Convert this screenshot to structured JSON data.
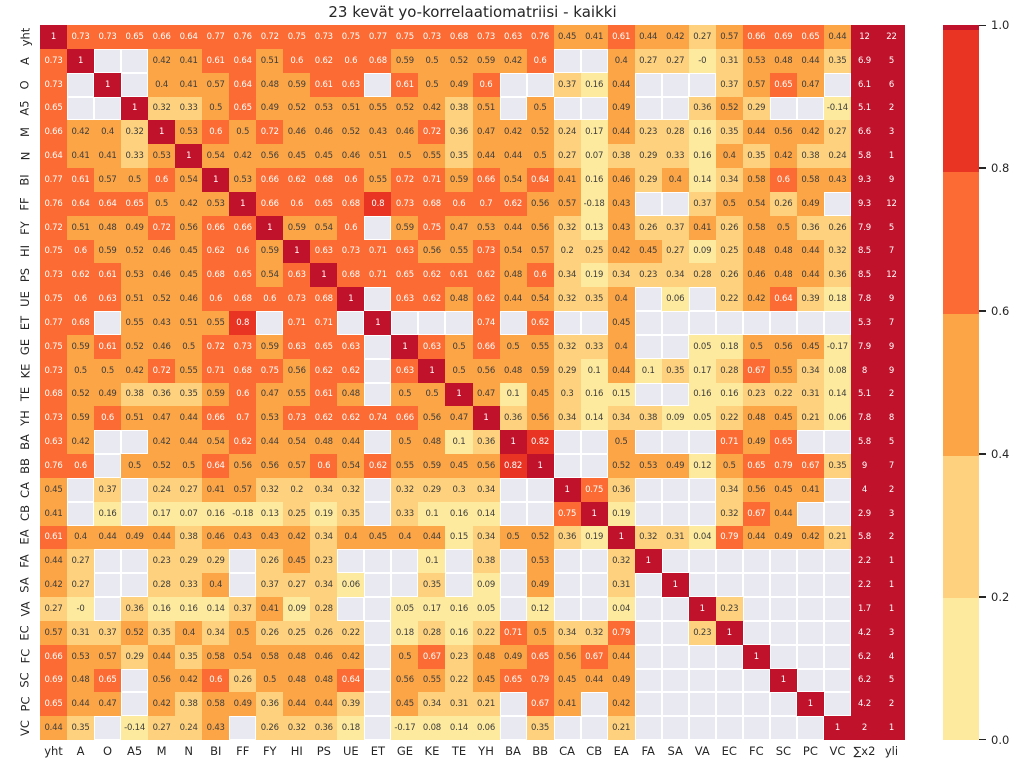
{
  "title": "23 kevät yo-korrelaatiomatriisi - kaikki",
  "colors": {
    "band_max": "#c0132b",
    "band_80_100": "#e93423",
    "band_60_80": "#fb6b33",
    "band_40_60": "#fba546",
    "band_20_40": "#fdd17d",
    "band_0_20": "#fdea9e",
    "missing": "#e9e9f1",
    "text_dark": "#3d3d3d",
    "text_light": "#ffffff",
    "axis_text": "#262626"
  },
  "chart_data": {
    "type": "heatmap",
    "title": "23 kevät yo-korrelaatiomatriisi - kaikki",
    "colormap_bands": [
      {
        "range": ">=1.0",
        "color": "#c0132b"
      },
      {
        "range": "0.8-1.0",
        "color": "#e93423"
      },
      {
        "range": "0.6-0.8",
        "color": "#fb6b33"
      },
      {
        "range": "0.4-0.6",
        "color": "#fba546"
      },
      {
        "range": "0.2-0.4",
        "color": "#fdd17d"
      },
      {
        "range": "0.0-0.2",
        "color": "#fdea9e"
      }
    ],
    "colorbar": {
      "ticks": [
        "1.0",
        "0.8",
        "0.6",
        "0.4",
        "0.2",
        "0.0"
      ],
      "range": [
        0,
        1
      ],
      "position": "right"
    },
    "columns": [
      "yht",
      "A",
      "O",
      "A5",
      "M",
      "N",
      "BI",
      "FF",
      "FY",
      "HI",
      "PS",
      "UE",
      "ET",
      "GE",
      "KE",
      "TE",
      "YH",
      "BA",
      "BB",
      "CA",
      "CB",
      "EA",
      "FA",
      "SA",
      "VA",
      "EC",
      "FC",
      "SC",
      "PC",
      "VC",
      "∑x2",
      "yli"
    ],
    "rows": [
      "yht",
      "A",
      "O",
      "A5",
      "M",
      "N",
      "BI",
      "FF",
      "FY",
      "HI",
      "PS",
      "UE",
      "ET",
      "GE",
      "KE",
      "TE",
      "YH",
      "BA",
      "BB",
      "CA",
      "CB",
      "EA",
      "FA",
      "SA",
      "VA",
      "EC",
      "FC",
      "SC",
      "PC",
      "VC"
    ],
    "matrix": [
      [
        "1",
        "0.73",
        "0.73",
        "0.65",
        "0.66",
        "0.64",
        "0.77",
        "0.76",
        "0.72",
        "0.75",
        "0.73",
        "0.75",
        "0.77",
        "0.75",
        "0.73",
        "0.68",
        "0.73",
        "0.63",
        "0.76",
        "0.45",
        "0.41",
        "0.61",
        "0.44",
        "0.42",
        "0.27",
        "0.57",
        "0.66",
        "0.69",
        "0.65",
        "0.44",
        "12",
        "22"
      ],
      [
        "0.73",
        "1",
        null,
        null,
        "0.42",
        "0.41",
        "0.61",
        "0.64",
        "0.51",
        "0.6",
        "0.62",
        "0.6",
        "0.68",
        "0.59",
        "0.5",
        "0.52",
        "0.59",
        "0.42",
        "0.6",
        null,
        null,
        "0.4",
        "0.27",
        "0.27",
        "-0",
        "0.31",
        "0.53",
        "0.48",
        "0.44",
        "0.35",
        "6.9",
        "5"
      ],
      [
        "0.73",
        null,
        "1",
        null,
        "0.4",
        "0.41",
        "0.57",
        "0.64",
        "0.48",
        "0.59",
        "0.61",
        "0.63",
        null,
        "0.61",
        "0.5",
        "0.49",
        "0.6",
        null,
        null,
        "0.37",
        "0.16",
        "0.44",
        null,
        null,
        null,
        "0.37",
        "0.57",
        "0.65",
        "0.47",
        null,
        "6.1",
        "6"
      ],
      [
        "0.65",
        null,
        null,
        "1",
        "0.32",
        "0.33",
        "0.5",
        "0.65",
        "0.49",
        "0.52",
        "0.53",
        "0.51",
        "0.55",
        "0.52",
        "0.42",
        "0.38",
        "0.51",
        null,
        "0.5",
        null,
        null,
        "0.49",
        null,
        null,
        "0.36",
        "0.52",
        "0.29",
        null,
        null,
        "-0.14",
        "5.1",
        "2"
      ],
      [
        "0.66",
        "0.42",
        "0.4",
        "0.32",
        "1",
        "0.53",
        "0.6",
        "0.5",
        "0.72",
        "0.46",
        "0.46",
        "0.52",
        "0.43",
        "0.46",
        "0.72",
        "0.36",
        "0.47",
        "0.42",
        "0.52",
        "0.24",
        "0.17",
        "0.44",
        "0.23",
        "0.28",
        "0.16",
        "0.35",
        "0.44",
        "0.56",
        "0.42",
        "0.27",
        "6.6",
        "3"
      ],
      [
        "0.64",
        "0.41",
        "0.41",
        "0.33",
        "0.53",
        "1",
        "0.54",
        "0.42",
        "0.56",
        "0.45",
        "0.45",
        "0.46",
        "0.51",
        "0.5",
        "0.55",
        "0.35",
        "0.44",
        "0.44",
        "0.5",
        "0.27",
        "0.07",
        "0.38",
        "0.29",
        "0.33",
        "0.16",
        "0.4",
        "0.35",
        "0.42",
        "0.38",
        "0.24",
        "5.8",
        "1"
      ],
      [
        "0.77",
        "0.61",
        "0.57",
        "0.5",
        "0.6",
        "0.54",
        "1",
        "0.53",
        "0.66",
        "0.62",
        "0.68",
        "0.6",
        "0.55",
        "0.72",
        "0.71",
        "0.59",
        "0.66",
        "0.54",
        "0.64",
        "0.41",
        "0.16",
        "0.46",
        "0.29",
        "0.4",
        "0.14",
        "0.34",
        "0.58",
        "0.6",
        "0.58",
        "0.43",
        "9.3",
        "9"
      ],
      [
        "0.76",
        "0.64",
        "0.64",
        "0.65",
        "0.5",
        "0.42",
        "0.53",
        "1",
        "0.66",
        "0.6",
        "0.65",
        "0.68",
        "0.8",
        "0.73",
        "0.68",
        "0.6",
        "0.7",
        "0.62",
        "0.56",
        "0.57",
        "-0.18",
        "0.43",
        null,
        null,
        "0.37",
        "0.5",
        "0.54",
        "0.26",
        "0.49",
        null,
        "9.3",
        "12"
      ],
      [
        "0.72",
        "0.51",
        "0.48",
        "0.49",
        "0.72",
        "0.56",
        "0.66",
        "0.66",
        "1",
        "0.59",
        "0.54",
        "0.6",
        null,
        "0.59",
        "0.75",
        "0.47",
        "0.53",
        "0.44",
        "0.56",
        "0.32",
        "0.13",
        "0.43",
        "0.26",
        "0.37",
        "0.41",
        "0.26",
        "0.58",
        "0.5",
        "0.36",
        "0.26",
        "7.9",
        "5"
      ],
      [
        "0.75",
        "0.6",
        "0.59",
        "0.52",
        "0.46",
        "0.45",
        "0.62",
        "0.6",
        "0.59",
        "1",
        "0.63",
        "0.73",
        "0.71",
        "0.63",
        "0.56",
        "0.55",
        "0.73",
        "0.54",
        "0.57",
        "0.2",
        "0.25",
        "0.42",
        "0.45",
        "0.27",
        "0.09",
        "0.25",
        "0.48",
        "0.48",
        "0.44",
        "0.32",
        "8.5",
        "7"
      ],
      [
        "0.73",
        "0.62",
        "0.61",
        "0.53",
        "0.46",
        "0.45",
        "0.68",
        "0.65",
        "0.54",
        "0.63",
        "1",
        "0.68",
        "0.71",
        "0.65",
        "0.62",
        "0.61",
        "0.62",
        "0.48",
        "0.6",
        "0.34",
        "0.19",
        "0.34",
        "0.23",
        "0.34",
        "0.28",
        "0.26",
        "0.46",
        "0.48",
        "0.44",
        "0.36",
        "8.5",
        "12"
      ],
      [
        "0.75",
        "0.6",
        "0.63",
        "0.51",
        "0.52",
        "0.46",
        "0.6",
        "0.68",
        "0.6",
        "0.73",
        "0.68",
        "1",
        null,
        "0.63",
        "0.62",
        "0.48",
        "0.62",
        "0.44",
        "0.54",
        "0.32",
        "0.35",
        "0.4",
        null,
        "0.06",
        null,
        "0.22",
        "0.42",
        "0.64",
        "0.39",
        "0.18",
        "7.8",
        "9"
      ],
      [
        "0.77",
        "0.68",
        null,
        "0.55",
        "0.43",
        "0.51",
        "0.55",
        "0.8",
        null,
        "0.71",
        "0.71",
        null,
        "1",
        null,
        null,
        null,
        "0.74",
        null,
        "0.62",
        null,
        null,
        "0.45",
        null,
        null,
        null,
        null,
        null,
        null,
        null,
        null,
        "5.3",
        "7"
      ],
      [
        "0.75",
        "0.59",
        "0.61",
        "0.52",
        "0.46",
        "0.5",
        "0.72",
        "0.73",
        "0.59",
        "0.63",
        "0.65",
        "0.63",
        null,
        "1",
        "0.63",
        "0.5",
        "0.66",
        "0.5",
        "0.55",
        "0.32",
        "0.33",
        "0.4",
        null,
        null,
        "0.05",
        "0.18",
        "0.5",
        "0.56",
        "0.45",
        "-0.17",
        "7.9",
        "9"
      ],
      [
        "0.73",
        "0.5",
        "0.5",
        "0.42",
        "0.72",
        "0.55",
        "0.71",
        "0.68",
        "0.75",
        "0.56",
        "0.62",
        "0.62",
        null,
        "0.63",
        "1",
        "0.5",
        "0.56",
        "0.48",
        "0.59",
        "0.29",
        "0.1",
        "0.44",
        "0.1",
        "0.35",
        "0.17",
        "0.28",
        "0.67",
        "0.55",
        "0.34",
        "0.08",
        "8",
        "9"
      ],
      [
        "0.68",
        "0.52",
        "0.49",
        "0.38",
        "0.36",
        "0.35",
        "0.59",
        "0.6",
        "0.47",
        "0.55",
        "0.61",
        "0.48",
        null,
        "0.5",
        "0.5",
        "1",
        "0.47",
        "0.1",
        "0.45",
        "0.3",
        "0.16",
        "0.15",
        null,
        null,
        "0.16",
        "0.16",
        "0.23",
        "0.22",
        "0.31",
        "0.14",
        "5.1",
        "2"
      ],
      [
        "0.73",
        "0.59",
        "0.6",
        "0.51",
        "0.47",
        "0.44",
        "0.66",
        "0.7",
        "0.53",
        "0.73",
        "0.62",
        "0.62",
        "0.74",
        "0.66",
        "0.56",
        "0.47",
        "1",
        "0.36",
        "0.56",
        "0.34",
        "0.14",
        "0.34",
        "0.38",
        "0.09",
        "0.05",
        "0.22",
        "0.48",
        "0.45",
        "0.21",
        "0.06",
        "7.8",
        "8"
      ],
      [
        "0.63",
        "0.42",
        null,
        null,
        "0.42",
        "0.44",
        "0.54",
        "0.62",
        "0.44",
        "0.54",
        "0.48",
        "0.44",
        null,
        "0.5",
        "0.48",
        "0.1",
        "0.36",
        "1",
        "0.82",
        null,
        null,
        "0.5",
        null,
        null,
        null,
        "0.71",
        "0.49",
        "0.65",
        null,
        null,
        "5.8",
        "5"
      ],
      [
        "0.76",
        "0.6",
        null,
        "0.5",
        "0.52",
        "0.5",
        "0.64",
        "0.56",
        "0.56",
        "0.57",
        "0.6",
        "0.54",
        "0.62",
        "0.55",
        "0.59",
        "0.45",
        "0.56",
        "0.82",
        "1",
        null,
        null,
        "0.52",
        "0.53",
        "0.49",
        "0.12",
        "0.5",
        "0.65",
        "0.79",
        "0.67",
        "0.35",
        "9",
        "7"
      ],
      [
        "0.45",
        null,
        "0.37",
        null,
        "0.24",
        "0.27",
        "0.41",
        "0.57",
        "0.32",
        "0.2",
        "0.34",
        "0.32",
        null,
        "0.32",
        "0.29",
        "0.3",
        "0.34",
        null,
        null,
        "1",
        "0.75",
        "0.36",
        null,
        null,
        null,
        "0.34",
        "0.56",
        "0.45",
        "0.41",
        null,
        "4",
        "2"
      ],
      [
        "0.41",
        null,
        "0.16",
        null,
        "0.17",
        "0.07",
        "0.16",
        "-0.18",
        "0.13",
        "0.25",
        "0.19",
        "0.35",
        null,
        "0.33",
        "0.1",
        "0.16",
        "0.14",
        null,
        null,
        "0.75",
        "1",
        "0.19",
        null,
        null,
        null,
        "0.32",
        "0.67",
        "0.44",
        null,
        null,
        "2.9",
        "3"
      ],
      [
        "0.61",
        "0.4",
        "0.44",
        "0.49",
        "0.44",
        "0.38",
        "0.46",
        "0.43",
        "0.43",
        "0.42",
        "0.34",
        "0.4",
        "0.45",
        "0.4",
        "0.44",
        "0.15",
        "0.34",
        "0.5",
        "0.52",
        "0.36",
        "0.19",
        "1",
        "0.32",
        "0.31",
        "0.04",
        "0.79",
        "0.44",
        "0.49",
        "0.42",
        "0.21",
        "5.8",
        "2"
      ],
      [
        "0.44",
        "0.27",
        null,
        null,
        "0.23",
        "0.29",
        "0.29",
        null,
        "0.26",
        "0.45",
        "0.23",
        null,
        null,
        null,
        "0.1",
        null,
        "0.38",
        null,
        "0.53",
        null,
        null,
        "0.32",
        "1",
        null,
        null,
        null,
        null,
        null,
        null,
        null,
        "2.2",
        "1"
      ],
      [
        "0.42",
        "0.27",
        null,
        null,
        "0.28",
        "0.33",
        "0.4",
        null,
        "0.37",
        "0.27",
        "0.34",
        "0.06",
        null,
        null,
        "0.35",
        null,
        "0.09",
        null,
        "0.49",
        null,
        null,
        "0.31",
        null,
        "1",
        null,
        null,
        null,
        null,
        null,
        null,
        "2.2",
        "1"
      ],
      [
        "0.27",
        "-0",
        null,
        "0.36",
        "0.16",
        "0.16",
        "0.14",
        "0.37",
        "0.41",
        "0.09",
        "0.28",
        null,
        null,
        "0.05",
        "0.17",
        "0.16",
        "0.05",
        null,
        "0.12",
        null,
        null,
        "0.04",
        null,
        null,
        "1",
        "0.23",
        null,
        null,
        null,
        null,
        "1.7",
        "1"
      ],
      [
        "0.57",
        "0.31",
        "0.37",
        "0.52",
        "0.35",
        "0.4",
        "0.34",
        "0.5",
        "0.26",
        "0.25",
        "0.26",
        "0.22",
        null,
        "0.18",
        "0.28",
        "0.16",
        "0.22",
        "0.71",
        "0.5",
        "0.34",
        "0.32",
        "0.79",
        null,
        null,
        "0.23",
        "1",
        null,
        null,
        null,
        null,
        "4.2",
        "3"
      ],
      [
        "0.66",
        "0.53",
        "0.57",
        "0.29",
        "0.44",
        "0.35",
        "0.58",
        "0.54",
        "0.58",
        "0.48",
        "0.46",
        "0.42",
        null,
        "0.5",
        "0.67",
        "0.23",
        "0.48",
        "0.49",
        "0.65",
        "0.56",
        "0.67",
        "0.44",
        null,
        null,
        null,
        null,
        "1",
        null,
        null,
        null,
        "6.2",
        "4"
      ],
      [
        "0.69",
        "0.48",
        "0.65",
        null,
        "0.56",
        "0.42",
        "0.6",
        "0.26",
        "0.5",
        "0.48",
        "0.48",
        "0.64",
        null,
        "0.56",
        "0.55",
        "0.22",
        "0.45",
        "0.65",
        "0.79",
        "0.45",
        "0.44",
        "0.49",
        null,
        null,
        null,
        null,
        null,
        "1",
        null,
        null,
        "6.2",
        "5"
      ],
      [
        "0.65",
        "0.44",
        "0.47",
        null,
        "0.42",
        "0.38",
        "0.58",
        "0.49",
        "0.36",
        "0.44",
        "0.44",
        "0.39",
        null,
        "0.45",
        "0.34",
        "0.31",
        "0.21",
        null,
        "0.67",
        "0.41",
        null,
        "0.42",
        null,
        null,
        null,
        null,
        null,
        null,
        "1",
        null,
        "4.2",
        "2"
      ],
      [
        "0.44",
        "0.35",
        null,
        "-0.14",
        "0.27",
        "0.24",
        "0.43",
        null,
        "0.26",
        "0.32",
        "0.36",
        "0.18",
        null,
        "-0.17",
        "0.08",
        "0.14",
        "0.06",
        null,
        "0.35",
        null,
        null,
        "0.21",
        null,
        null,
        null,
        null,
        null,
        null,
        null,
        "1",
        "2",
        "1"
      ]
    ]
  }
}
